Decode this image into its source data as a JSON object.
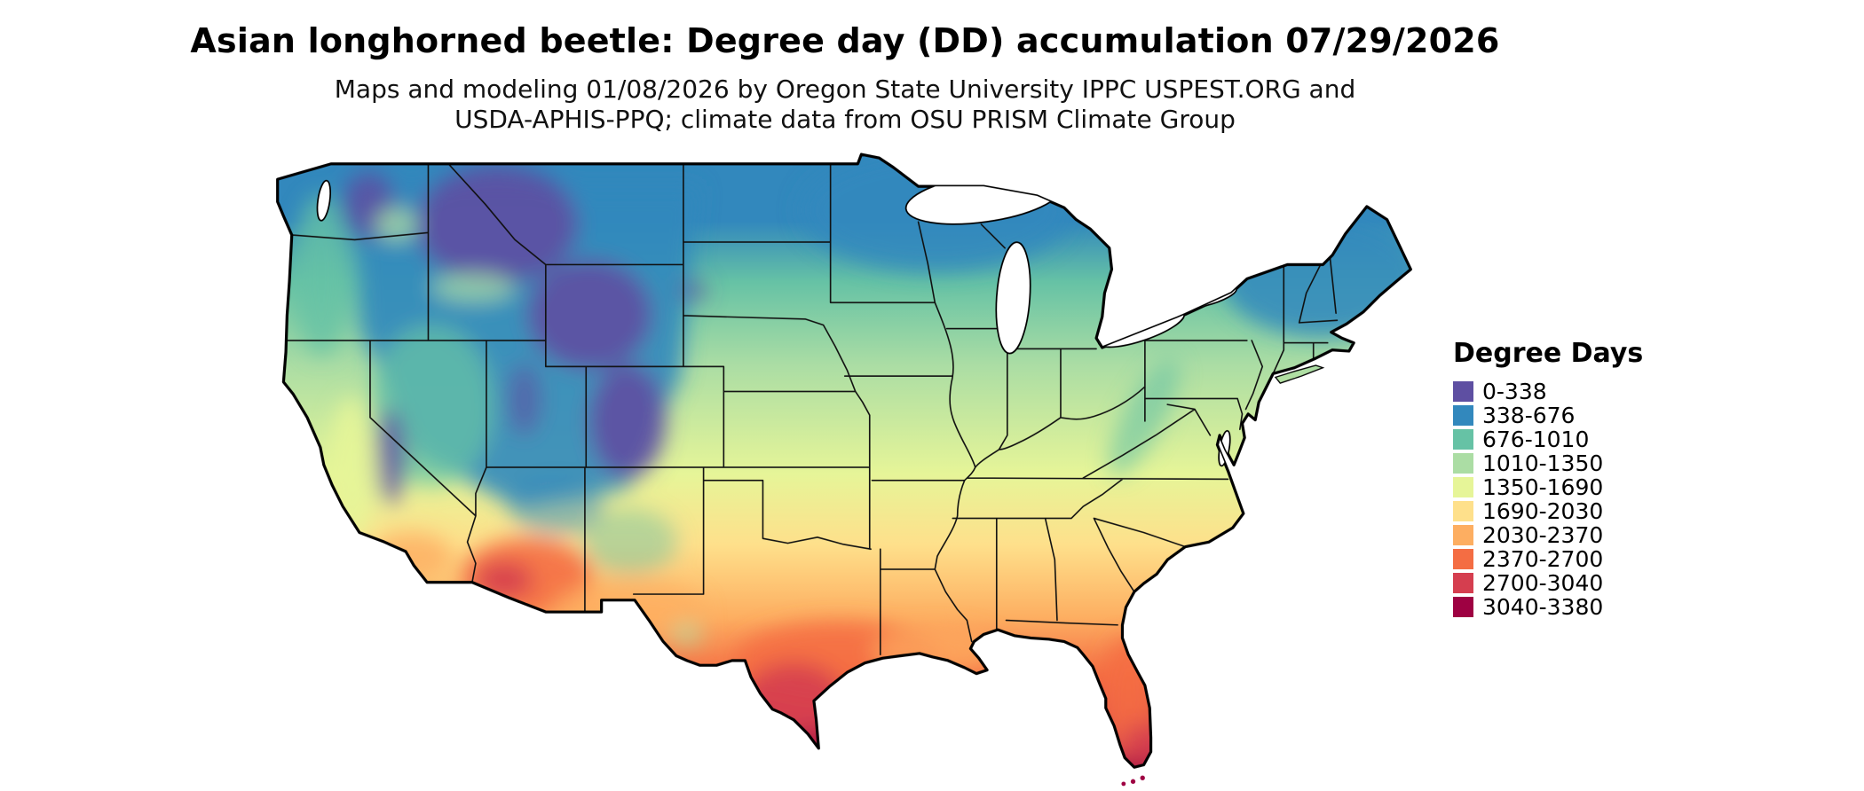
{
  "header": {
    "title": "Asian longhorned beetle: Degree day (DD) accumulation 07/29/2026",
    "subtitle_line1": "Maps and modeling 01/08/2026 by Oregon State University IPPC USPEST.ORG and",
    "subtitle_line2": "USDA-APHIS-PPQ; climate data from OSU PRISM Climate Group"
  },
  "legend": {
    "title": "Degree Days",
    "entries": [
      {
        "label": "0-338",
        "color": "#5e4fa2"
      },
      {
        "label": "338-676",
        "color": "#3288bd"
      },
      {
        "label": "676-1010",
        "color": "#66c2a5"
      },
      {
        "label": "1010-1350",
        "color": "#abdda4"
      },
      {
        "label": "1350-1690",
        "color": "#e6f598"
      },
      {
        "label": "1690-2030",
        "color": "#fee08b"
      },
      {
        "label": "2030-2370",
        "color": "#fdae61"
      },
      {
        "label": "2370-2700",
        "color": "#f46d43"
      },
      {
        "label": "2700-3040",
        "color": "#d53e4f"
      },
      {
        "label": "3040-3380",
        "color": "#9e0142"
      }
    ]
  }
}
